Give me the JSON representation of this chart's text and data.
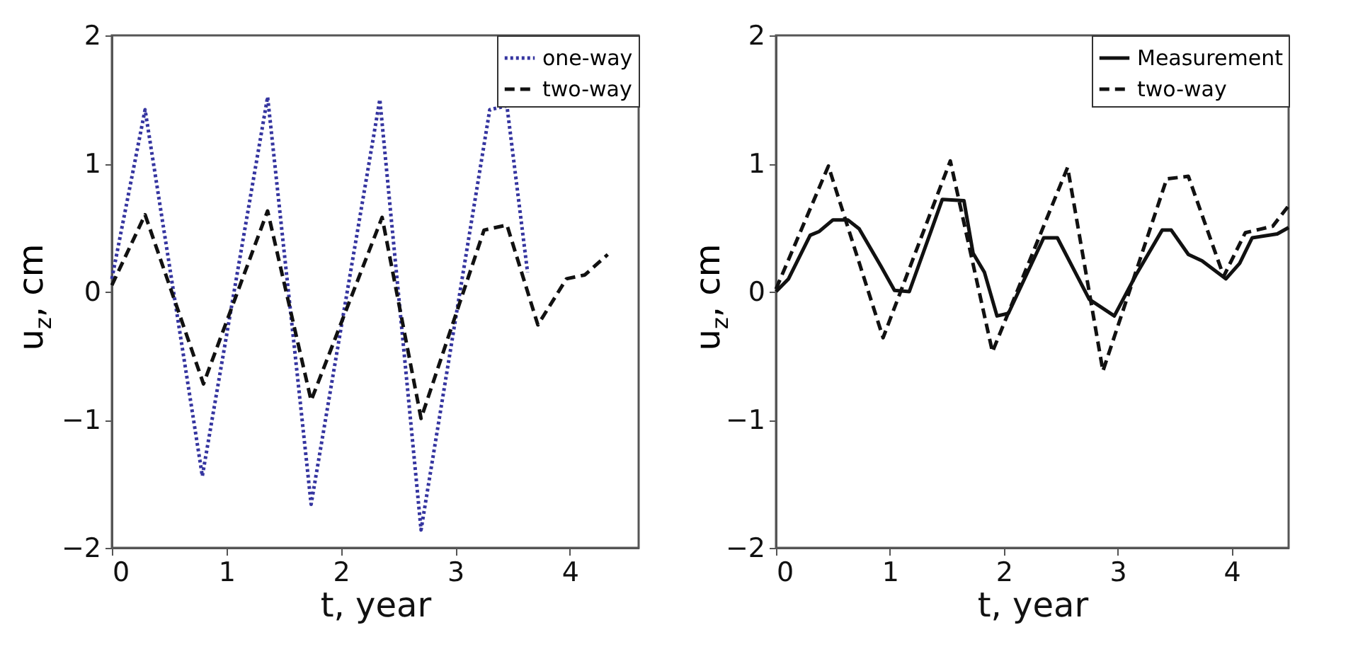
{
  "chart_data": [
    {
      "type": "line",
      "xlabel": "t, year",
      "ylabel": "u$_{z}$, cm",
      "xlim": [
        0,
        4.6
      ],
      "ylim": [
        -2,
        2
      ],
      "xticks": [
        0,
        1,
        2,
        3,
        4
      ],
      "yticks": [
        -2,
        -1,
        0,
        1,
        2
      ],
      "grid": false,
      "legend": "top right",
      "series": [
        {
          "name": "one-way",
          "color": "#3535a0",
          "line_style": "dotted",
          "x": [
            0,
            0.29,
            0.79,
            1.36,
            1.74,
            2.34,
            2.7,
            3.3,
            3.45,
            3.63
          ],
          "values": [
            0.1,
            1.42,
            -1.44,
            1.52,
            -1.66,
            1.5,
            -1.86,
            1.42,
            1.45,
            0.15
          ]
        },
        {
          "name": "two-way",
          "color": "#111111",
          "line_style": "dashed",
          "x": [
            0,
            0.29,
            0.8,
            1.36,
            1.74,
            2.36,
            2.7,
            3.25,
            3.45,
            3.72,
            3.97,
            4.13,
            4.33
          ],
          "values": [
            0.05,
            0.6,
            -0.72,
            0.63,
            -0.85,
            0.58,
            -0.99,
            0.48,
            0.52,
            -0.26,
            0.1,
            0.13,
            0.29
          ]
        }
      ]
    },
    {
      "type": "line",
      "xlabel": "t, year",
      "ylabel": "u$_{z}$, cm",
      "xlim": [
        0,
        4.5
      ],
      "ylim": [
        -2,
        2
      ],
      "xticks": [
        0,
        1,
        2,
        3,
        4
      ],
      "yticks": [
        -2,
        -1,
        0,
        1,
        2
      ],
      "grid": false,
      "legend": "top right",
      "series": [
        {
          "name": "Measurement",
          "color": "#111111",
          "line_style": "solid",
          "x": [
            0,
            0.11,
            0.3,
            0.38,
            0.5,
            0.63,
            0.73,
            0.92,
            1.04,
            1.17,
            1.36,
            1.46,
            1.65,
            1.73,
            1.83,
            1.94,
            2.04,
            2.35,
            2.47,
            2.75,
            2.97,
            3.16,
            3.39,
            3.47,
            3.62,
            3.74,
            3.95,
            4.07,
            4.18,
            4.4,
            4.5
          ],
          "values": [
            0,
            0.1,
            0.44,
            0.47,
            0.56,
            0.56,
            0.49,
            0.2,
            0.01,
            0,
            0.47,
            0.72,
            0.71,
            0.3,
            0.15,
            -0.19,
            -0.17,
            0.42,
            0.42,
            -0.06,
            -0.19,
            0.13,
            0.48,
            0.48,
            0.29,
            0.24,
            0.1,
            0.22,
            0.42,
            0.45,
            0.5
          ]
        },
        {
          "name": "two-way",
          "color": "#111111",
          "line_style": "dashed",
          "x": [
            0,
            0.46,
            0.94,
            1.53,
            1.9,
            2.56,
            2.87,
            3.43,
            3.62,
            3.93,
            4.12,
            4.36,
            4.5
          ],
          "values": [
            0.02,
            0.98,
            -0.36,
            1.02,
            -0.47,
            0.97,
            -0.62,
            0.88,
            0.9,
            0.12,
            0.46,
            0.51,
            0.67
          ]
        }
      ]
    }
  ]
}
